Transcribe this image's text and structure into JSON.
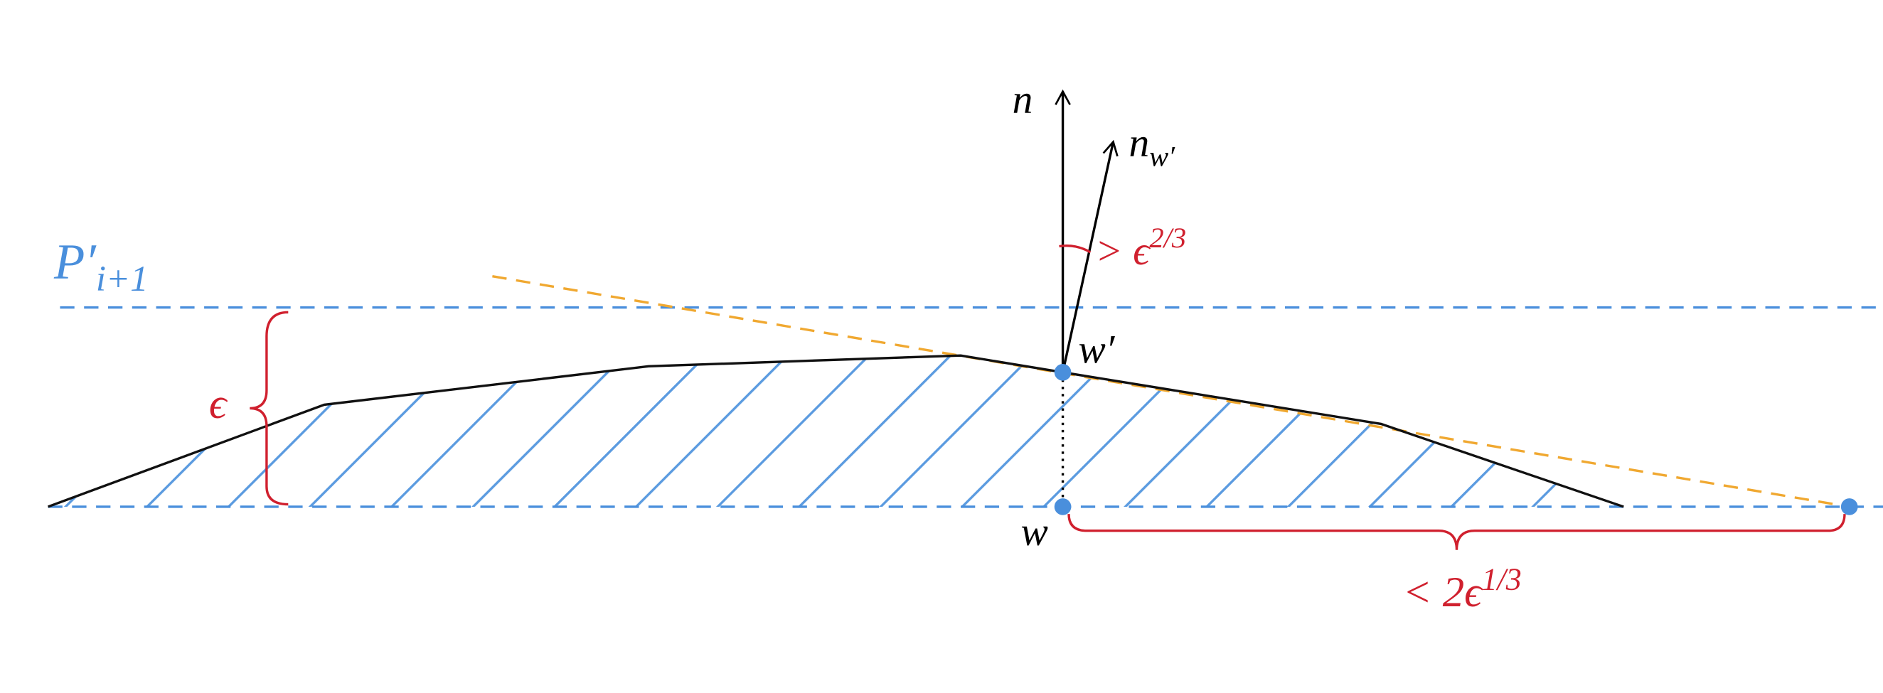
{
  "labels": {
    "normal": "n",
    "normal_w": {
      "base": "n",
      "sub": "w′"
    },
    "angle": {
      "text": "> ϵ",
      "sup": "2/3"
    },
    "plane": {
      "base": "P′",
      "sub": "i+1"
    },
    "epsilon": "ϵ",
    "w_prime": "w′",
    "w": "w",
    "distance": {
      "text": "< 2ϵ",
      "sup": "1/3"
    }
  }
}
